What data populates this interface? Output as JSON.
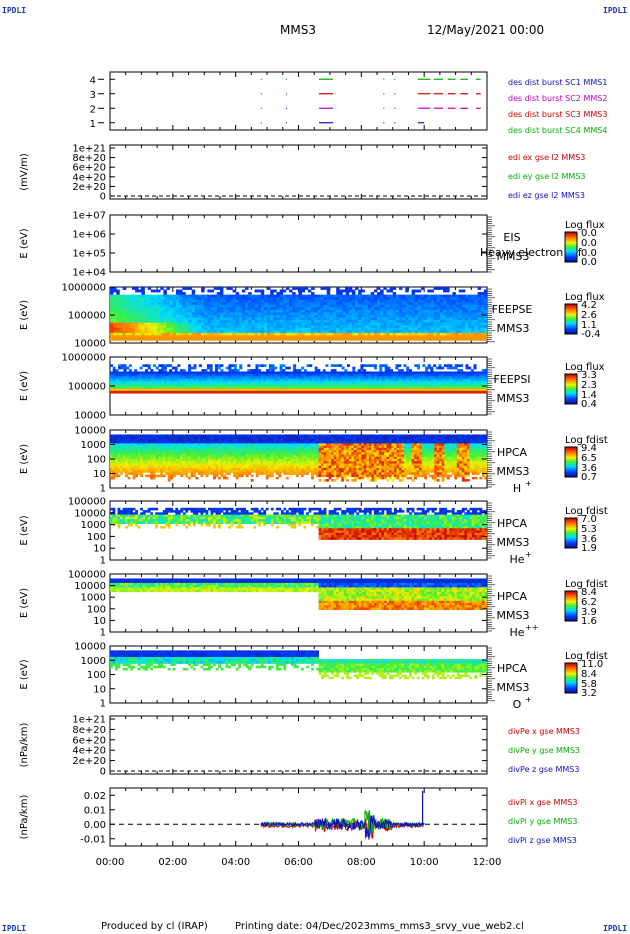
{
  "corner_labels": {
    "tl": "IPDLI",
    "tr": "IPDLI",
    "bl": "IPDLI",
    "br": "IPDLI"
  },
  "header": {
    "spacecraft": "MMS3",
    "datetime": "12/May/2021 00:00"
  },
  "footer": {
    "produced_by": "Produced by cl (IRAP)",
    "printing_date": "Printing date: 04/Dec/2023",
    "filename": "mms_mms3_srvy_vue_web2.cl"
  },
  "chart_data": [
    {
      "type": "line",
      "id": "burst",
      "ylim": [
        0.5,
        4.5
      ],
      "yticks": [
        "4",
        "3",
        "2",
        "1"
      ],
      "legend": [
        {
          "text": "des dist burst SC1 MMS1",
          "color": "#1010c0"
        },
        {
          "text": "des dist burst SC2 MMS2",
          "color": "#c000c0"
        },
        {
          "text": "des dist burst SC3 MMS3",
          "color": "#d00000"
        },
        {
          "text": "des dist burst SC4 MMS4",
          "color": "#00b000"
        }
      ],
      "segments": [
        {
          "y": 4,
          "color": "#00b000",
          "intervals": [
            [
              6.65,
              7.1
            ],
            [
              9.8,
              10.2
            ],
            [
              10.3,
              10.6
            ],
            [
              10.75,
              11.0
            ],
            [
              11.15,
              11.4
            ],
            [
              11.65,
              11.8
            ]
          ]
        },
        {
          "y": 3,
          "color": "#d00000",
          "intervals": [
            [
              6.65,
              7.1
            ],
            [
              9.8,
              10.2
            ],
            [
              10.3,
              10.6
            ],
            [
              10.75,
              11.0
            ],
            [
              11.15,
              11.4
            ],
            [
              11.65,
              11.8
            ]
          ]
        },
        {
          "y": 2,
          "color": "#c000c0",
          "intervals": [
            [
              6.65,
              7.1
            ],
            [
              9.8,
              10.2
            ],
            [
              10.3,
              10.6
            ],
            [
              10.75,
              11.0
            ],
            [
              11.15,
              11.4
            ],
            [
              11.65,
              11.8
            ]
          ]
        },
        {
          "y": 1,
          "color": "#1010c0",
          "intervals": [
            [
              6.65,
              7.1
            ],
            [
              9.8,
              10.0
            ]
          ]
        }
      ],
      "dots": [
        4.8,
        5.6,
        8.7,
        9.05
      ]
    },
    {
      "type": "line",
      "id": "edi",
      "ylabel": "(mV/m)",
      "yticks": [
        "1e+21",
        "8e+20",
        "6e+20",
        "4e+20",
        "2e+20",
        "0"
      ],
      "legend": [
        {
          "text": "edi ex gse l2 MMS3",
          "color": "#d00000"
        },
        {
          "text": "edi ey gse l2 MMS3",
          "color": "#00b000"
        },
        {
          "text": "edi ez gse l2 MMS3",
          "color": "#1010c0"
        }
      ]
    },
    {
      "type": "heatmap",
      "id": "eis",
      "ylabel": "E (eV)",
      "yticks": [
        "1e+07",
        "1e+06",
        "1e+05",
        "1e+04"
      ],
      "labels": [
        "EIS",
        "MMS3"
      ],
      "overlay": "Heavy electron tof",
      "colorbar": {
        "title": "Log flux",
        "ticks": [
          "0.0",
          "0.0",
          "0.0",
          "0.0"
        ]
      }
    },
    {
      "type": "heatmap",
      "id": "feepse",
      "ylabel": "E (eV)",
      "yticks": [
        "1000000",
        "100000",
        "10000"
      ],
      "labels": [
        "FEEPSE",
        "MMS3"
      ],
      "colorbar": {
        "title": "Log flux",
        "ticks": [
          "4.2",
          "2.6",
          "1.1",
          "-0.4"
        ]
      }
    },
    {
      "type": "heatmap",
      "id": "feepsi",
      "ylabel": "E (eV)",
      "yticks": [
        "1000000",
        "100000",
        "10000"
      ],
      "labels": [
        "FEEPSI",
        "MMS3"
      ],
      "colorbar": {
        "title": "Log flux",
        "ticks": [
          "3.3",
          "2.3",
          "1.4",
          "0.4"
        ]
      }
    },
    {
      "type": "heatmap",
      "id": "hpca_h",
      "ylabel": "E (eV)",
      "yticks": [
        "10000",
        "1000",
        "100",
        "10",
        "1"
      ],
      "labels": [
        "HPCA",
        "MMS3"
      ],
      "species": "H",
      "charge": "+",
      "colorbar": {
        "title": "Log fdist",
        "ticks": [
          "9.4",
          "6.5",
          "3.6",
          "0.7"
        ]
      }
    },
    {
      "type": "heatmap",
      "id": "hpca_he",
      "ylabel": "E (eV)",
      "yticks": [
        "100000",
        "10000",
        "1000",
        "100",
        "10",
        "1"
      ],
      "labels": [
        "HPCA",
        "MMS3"
      ],
      "species": "He",
      "charge": "+",
      "colorbar": {
        "title": "Log fdist",
        "ticks": [
          "7.0",
          "5.3",
          "3.6",
          "1.9"
        ]
      }
    },
    {
      "type": "heatmap",
      "id": "hpca_he2",
      "ylabel": "E (eV)",
      "yticks": [
        "100000",
        "10000",
        "1000",
        "100",
        "10",
        "1"
      ],
      "labels": [
        "HPCA",
        "MMS3"
      ],
      "species": "He",
      "charge": "++",
      "colorbar": {
        "title": "Log fdist",
        "ticks": [
          "8.4",
          "6.2",
          "3.9",
          "1.6"
        ]
      }
    },
    {
      "type": "heatmap",
      "id": "hpca_o",
      "ylabel": "E (eV)",
      "yticks": [
        "10000",
        "1000",
        "100",
        "10",
        "1"
      ],
      "labels": [
        "HPCA",
        "MMS3"
      ],
      "species": "O",
      "charge": "+",
      "colorbar": {
        "title": "Log fdist",
        "ticks": [
          "11.0",
          "8.4",
          "5.8",
          "3.2"
        ]
      }
    },
    {
      "type": "line",
      "id": "divpe",
      "ylabel": "(nPa/km)",
      "yticks": [
        "1e+21",
        "8e+20",
        "6e+20",
        "4e+20",
        "2e+20",
        "0"
      ],
      "legend": [
        {
          "text": "divPe x gse MMS3",
          "color": "#d00000"
        },
        {
          "text": "divPe y gse MMS3",
          "color": "#00b000"
        },
        {
          "text": "divPe z gse MMS3",
          "color": "#1010c0"
        }
      ]
    },
    {
      "type": "line",
      "id": "divpi",
      "ylabel": "(nPa/km)",
      "ylim": [
        -0.015,
        0.025
      ],
      "yticks": [
        "0.02",
        "0.01",
        "0.00",
        "-0.01"
      ],
      "legend": [
        {
          "text": "divPi x gse MMS3",
          "color": "#d00000"
        },
        {
          "text": "divPi y gse MMS3",
          "color": "#00b000"
        },
        {
          "text": "divPi z gse MMS3",
          "color": "#1010c0"
        }
      ]
    }
  ],
  "xaxis": {
    "range_hours": [
      0,
      12
    ],
    "tick_labels": [
      "00:00",
      "02:00",
      "04:00",
      "06:00",
      "08:00",
      "10:00",
      "12:00"
    ]
  }
}
